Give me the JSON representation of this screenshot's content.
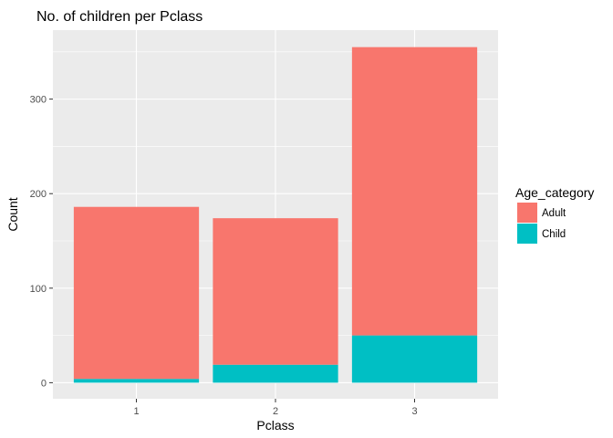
{
  "chart_data": {
    "type": "bar",
    "stacked": true,
    "title": "No. of children per Pclass",
    "xlabel": "Pclass",
    "ylabel": "Count",
    "categories": [
      "1",
      "2",
      "3"
    ],
    "series": [
      {
        "name": "Adult",
        "color": "#F8766D",
        "values": [
          182,
          155,
          305
        ]
      },
      {
        "name": "Child",
        "color": "#00BFC4",
        "values": [
          4,
          19,
          50
        ]
      }
    ],
    "ylim": [
      -17,
      373
    ],
    "yticks": [
      "0",
      "100",
      "200",
      "300"
    ],
    "legend": {
      "title": "Age_category",
      "placement": "right"
    },
    "grid": true,
    "panel_background": "#EBEBEB",
    "grid_color": "#FFFFFF"
  }
}
